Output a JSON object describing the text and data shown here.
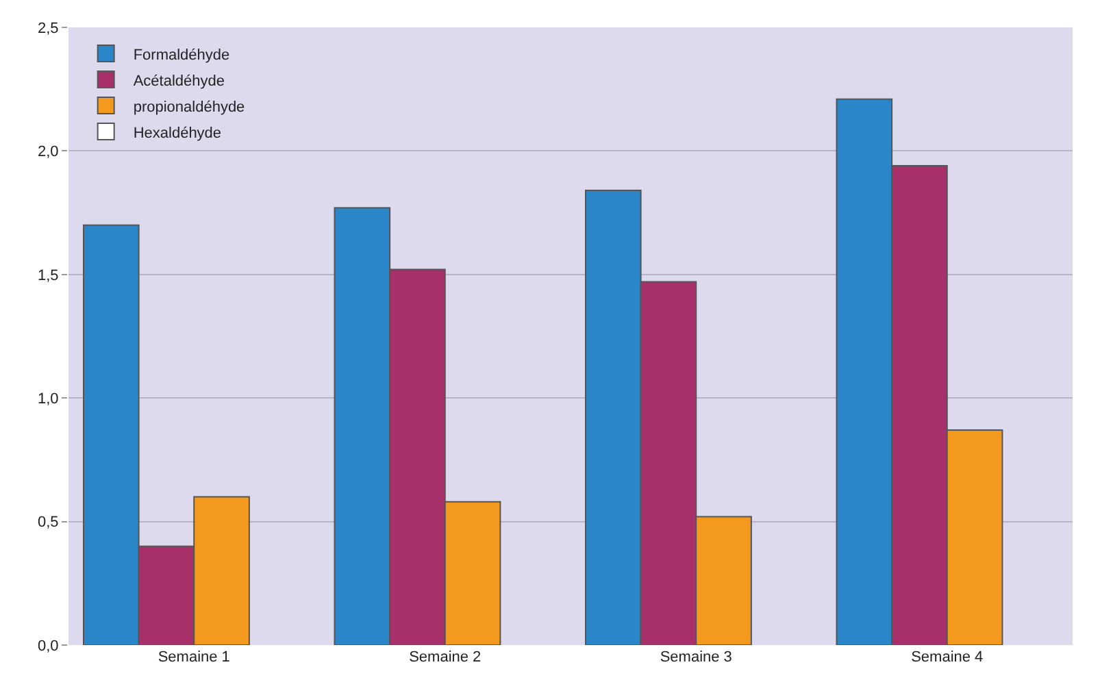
{
  "chart_data": {
    "type": "bar",
    "categories": [
      "Semaine 1",
      "Semaine 2",
      "Semaine 3",
      "Semaine 4"
    ],
    "series": [
      {
        "name": "Formaldéhyde",
        "color": "#2a86c8",
        "values": [
          1.7,
          1.77,
          1.84,
          2.21
        ]
      },
      {
        "name": "Acétaldéhyde",
        "color": "#a8306a",
        "values": [
          0.4,
          1.52,
          1.47,
          1.94
        ]
      },
      {
        "name": "propionaldéhyde",
        "color": "#f39a1e",
        "values": [
          0.6,
          0.58,
          0.52,
          0.87
        ]
      },
      {
        "name": "Hexaldéhyde",
        "color": "#ffffff",
        "values": [
          null,
          null,
          null,
          null
        ]
      }
    ],
    "ylim": [
      0,
      2.5
    ],
    "yticks": [
      {
        "value": 0,
        "label": "0,0"
      },
      {
        "value": 0.5,
        "label": "0,5"
      },
      {
        "value": 1,
        "label": "1,0"
      },
      {
        "value": 1.5,
        "label": "1,5"
      },
      {
        "value": 2,
        "label": "2,0"
      },
      {
        "value": 2.5,
        "label": "2,5"
      }
    ],
    "grid": "y",
    "legend": "top left"
  }
}
